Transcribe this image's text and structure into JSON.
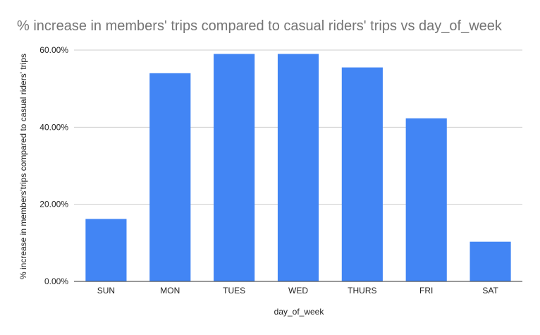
{
  "chart_data": {
    "type": "bar",
    "title": "% increase in members' trips compared to casual riders' trips vs day_of_week",
    "xlabel": "day_of_week",
    "ylabel": "% increase in members'trips compared to casual riders' trips",
    "categories": [
      "SUN",
      "MON",
      "TUES",
      "WED",
      "THURS",
      "FRI",
      "SAT"
    ],
    "series": [
      {
        "values": [
          16.2,
          54.0,
          59.0,
          59.0,
          55.5,
          42.3,
          10.3
        ]
      }
    ],
    "ylim": [
      0,
      60
    ],
    "yticks": [
      0,
      20,
      40,
      60
    ],
    "ytick_labels": [
      "0.00%",
      "20.00%",
      "40.00%",
      "60.00%"
    ],
    "grid": true,
    "legend": "none",
    "bar_color": "#4285f4"
  }
}
